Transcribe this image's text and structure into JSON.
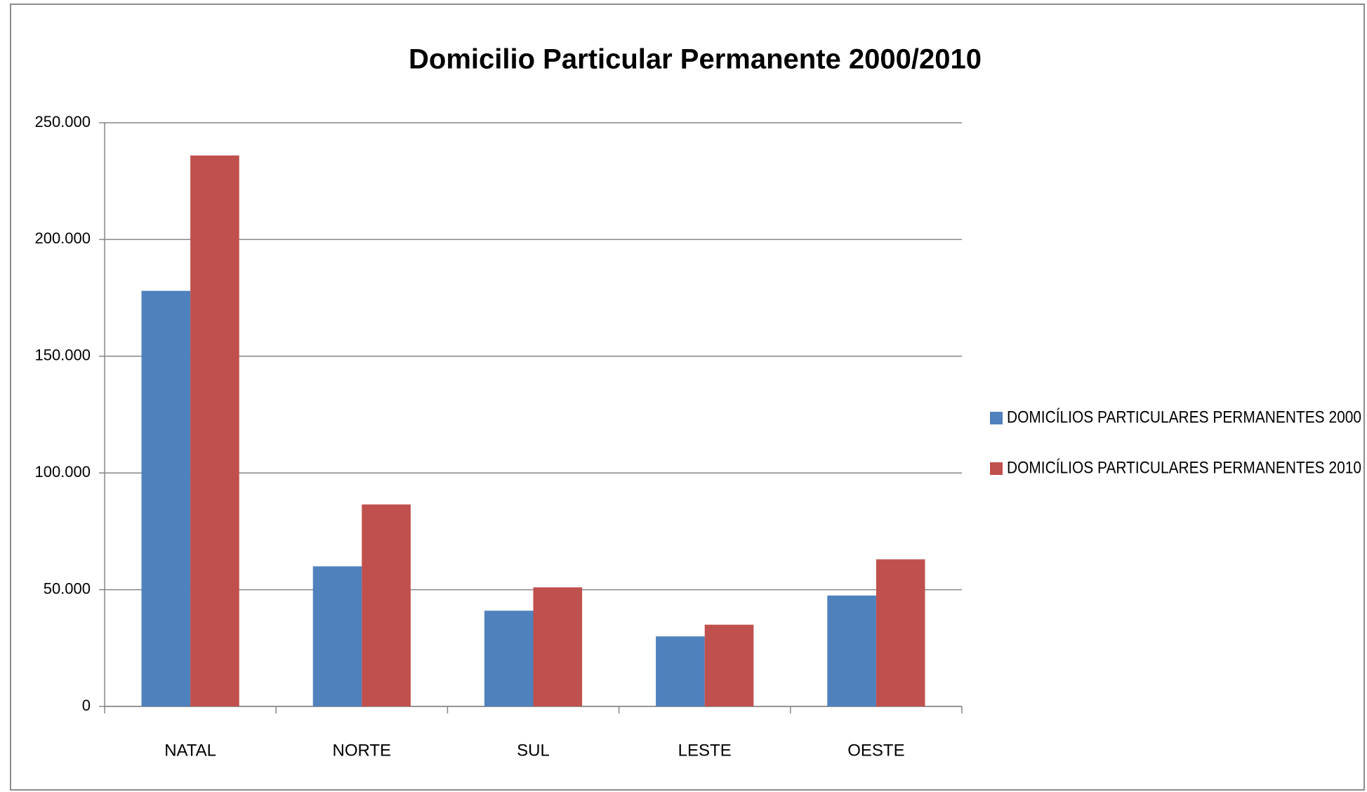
{
  "chart_data": {
    "type": "bar",
    "title": "Domicilio Particular Permanente 2000/2010",
    "categories": [
      "NATAL",
      "NORTE",
      "SUL",
      "LESTE",
      "OESTE"
    ],
    "series": [
      {
        "name": "DOMICÍLIOS PARTICULARES PERMANENTES 2000",
        "color": "#4f81bd",
        "values": [
          178000,
          60000,
          41000,
          30000,
          47500
        ]
      },
      {
        "name": "DOMICÍLIOS PARTICULARES PERMANENTES 2010",
        "color": "#c0504d",
        "values": [
          236000,
          86500,
          51000,
          35000,
          63000
        ]
      }
    ],
    "ylim": [
      0,
      250000
    ],
    "yticks": [
      0,
      {
        "value": 50000,
        "label": "50.000"
      },
      {
        "value": 100000,
        "label": "100.000"
      },
      {
        "value": 150000,
        "label": "150.000"
      },
      {
        "value": 200000,
        "label": "200.000"
      },
      {
        "value": 250000,
        "label": "250.000"
      }
    ],
    "grid": true,
    "legend": "right"
  }
}
